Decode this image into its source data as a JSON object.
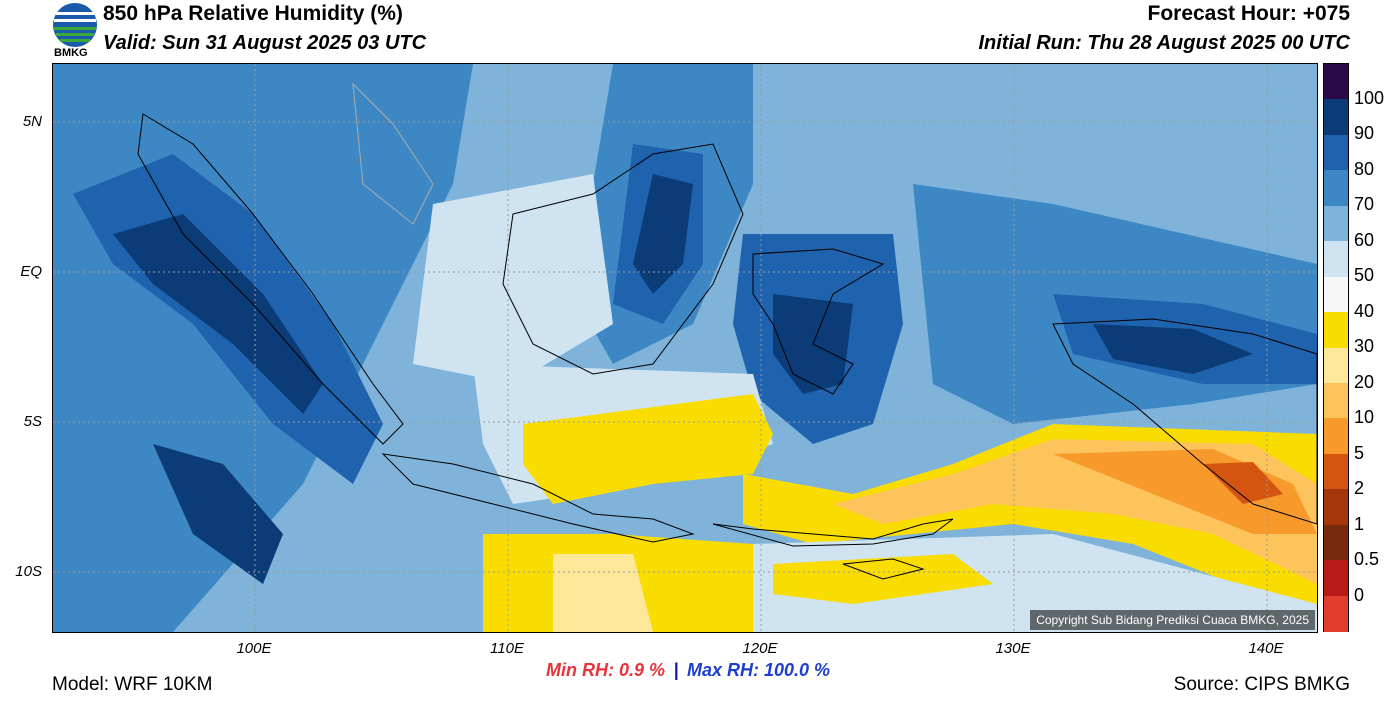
{
  "header": {
    "title": "850 hPa Relative Humidity (%)",
    "valid": "Valid: Sun 31 August 2025 03 UTC",
    "forecast_hour": "Forecast Hour: +075",
    "initial_run": "Initial Run: Thu 28 August 2025 00 UTC",
    "logo_text": "BMKG"
  },
  "axes": {
    "lat_labels": [
      "5N",
      "EQ",
      "5S",
      "10S"
    ],
    "lon_labels": [
      "100E",
      "110E",
      "120E",
      "130E",
      "140E"
    ]
  },
  "colorbar": {
    "labels": [
      "100",
      "90",
      "80",
      "70",
      "60",
      "50",
      "40",
      "30",
      "20",
      "10",
      "5",
      "2",
      "1",
      "0.5",
      "0"
    ],
    "colors": [
      "#2c0a4a",
      "#0b3c78",
      "#1f62ad",
      "#3d88c4",
      "#7fb3da",
      "#cfe3f1",
      "#f7f7f7",
      "#f9dd00",
      "#fde89a",
      "#fcc45a",
      "#f79a2b",
      "#d3550f",
      "#a5360c",
      "#7a2a0c",
      "#b81a16",
      "#e23c2c"
    ]
  },
  "stats": {
    "min": "Min RH:   0.9 %",
    "separator": "|",
    "max": "Max RH: 100.0 %"
  },
  "footer": {
    "model": "Model: WRF 10KM",
    "source": "Source: CIPS BMKG",
    "copyright": "Copyright Sub Bidang Prediksi Cuaca BMKG, 2025"
  }
}
